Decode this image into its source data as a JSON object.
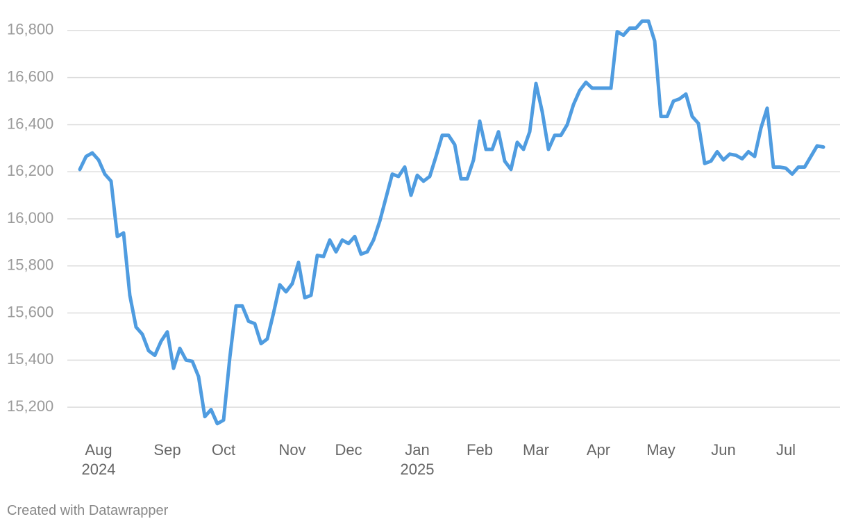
{
  "chart_data": {
    "type": "line",
    "categories": [
      null,
      null,
      null,
      "Aug\n2024",
      null,
      null,
      null,
      null,
      null,
      null,
      null,
      null,
      null,
      null,
      "Sep",
      null,
      null,
      null,
      null,
      null,
      null,
      null,
      null,
      "Oct",
      null,
      null,
      null,
      null,
      null,
      null,
      null,
      null,
      null,
      null,
      "Nov",
      null,
      null,
      null,
      null,
      null,
      null,
      null,
      null,
      "Dec",
      null,
      null,
      null,
      null,
      null,
      null,
      null,
      null,
      null,
      null,
      "Jan\n2025",
      null,
      null,
      null,
      null,
      null,
      null,
      null,
      null,
      null,
      "Feb",
      null,
      null,
      null,
      null,
      null,
      null,
      null,
      null,
      "Mar",
      null,
      null,
      null,
      null,
      null,
      null,
      null,
      null,
      null,
      "Apr",
      null,
      null,
      null,
      null,
      null,
      null,
      null,
      null,
      null,
      "May",
      null,
      null,
      null,
      null,
      null,
      null,
      null,
      null,
      null,
      "Jun",
      null,
      null,
      null,
      null,
      null,
      null,
      null,
      null,
      null,
      "Jul",
      null,
      null,
      null,
      null,
      null,
      null
    ],
    "values": [
      16210,
      16265,
      16280,
      16250,
      16190,
      16160,
      15925,
      15940,
      15675,
      15540,
      15510,
      15440,
      15420,
      15480,
      15520,
      15365,
      15450,
      15400,
      15395,
      15330,
      15160,
      15190,
      15130,
      15145,
      15410,
      15630,
      15630,
      15565,
      15555,
      15470,
      15490,
      15600,
      15720,
      15690,
      15725,
      15815,
      15665,
      15675,
      15845,
      15840,
      15910,
      15860,
      15910,
      15895,
      15925,
      15850,
      15860,
      15910,
      15990,
      16090,
      16190,
      16180,
      16220,
      16100,
      16185,
      16160,
      16180,
      16265,
      16355,
      16355,
      16315,
      16170,
      16170,
      16250,
      16415,
      16295,
      16295,
      16370,
      16245,
      16210,
      16325,
      16295,
      16370,
      16575,
      16455,
      16295,
      16355,
      16355,
      16400,
      16485,
      16545,
      16580,
      16555,
      16555,
      16555,
      16555,
      16795,
      16780,
      16810,
      16810,
      16840,
      16840,
      16755,
      16435,
      16435,
      16500,
      16510,
      16530,
      16435,
      16405,
      16235,
      16245,
      16285,
      16250,
      16275,
      16270,
      16255,
      16285,
      16265,
      16385,
      16470,
      16220,
      16220,
      16215,
      16190,
      16220,
      16220,
      16265,
      16310,
      16305
    ],
    "color": "#4f9ce0",
    "ylim": [
      15100,
      16900
    ],
    "yticks": [
      {
        "value": 15200,
        "label": "15,200"
      },
      {
        "value": 15400,
        "label": "15,400"
      },
      {
        "value": 15600,
        "label": "15,600"
      },
      {
        "value": 15800,
        "label": "15,800"
      },
      {
        "value": 16000,
        "label": "16,000"
      },
      {
        "value": 16200,
        "label": "16,200"
      },
      {
        "value": 16400,
        "label": "16,400"
      },
      {
        "value": 16600,
        "label": "16,600"
      },
      {
        "value": 16800,
        "label": "16,800"
      }
    ],
    "grid": true,
    "credit": "Created with Datawrapper"
  }
}
